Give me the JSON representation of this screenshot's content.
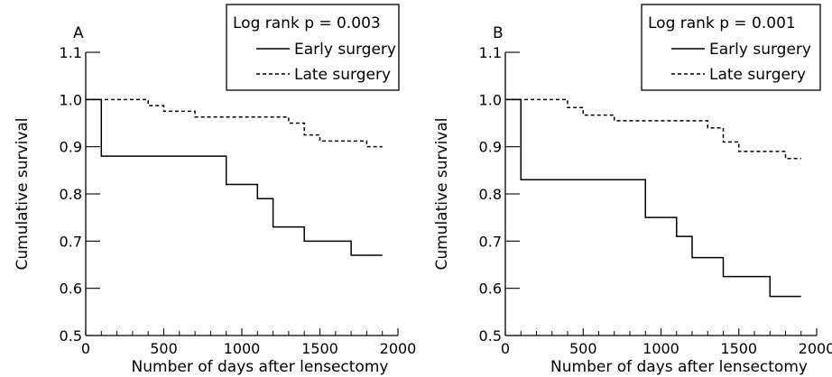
{
  "chart_data": [
    {
      "type": "line",
      "panel_label": "A",
      "xlabel": "Number of days after lensectomy",
      "ylabel": "Cumulative survival",
      "xlim": [
        0,
        2000
      ],
      "ylim": [
        0.5,
        1.1
      ],
      "x_ticks": [
        0,
        500,
        1000,
        1500,
        2000
      ],
      "x_tick_labels": [
        "0",
        "500",
        "1000",
        "1500",
        "2000"
      ],
      "y_ticks": [
        0.5,
        0.6,
        0.7,
        0.8,
        0.9,
        1.0,
        1.1
      ],
      "y_tick_labels": [
        "0.5",
        "0.6",
        "0.7",
        "0.8",
        "0.9",
        "1.0",
        "1.1"
      ],
      "legend_position": "top-right",
      "annotation": "Log rank p = 0.003",
      "series": [
        {
          "name": "Early surgery",
          "line_style": "solid",
          "x": [
            0,
            100,
            900,
            1000,
            1100,
            1200,
            1400,
            1700,
            1900
          ],
          "values": [
            1.0,
            0.88,
            0.82,
            0.82,
            0.79,
            0.73,
            0.7,
            0.67,
            0.67
          ]
        },
        {
          "name": "Late surgery",
          "line_style": "dashed",
          "x": [
            0,
            400,
            500,
            700,
            1300,
            1400,
            1500,
            1700,
            1800,
            1900
          ],
          "values": [
            1.0,
            0.987,
            0.975,
            0.963,
            0.95,
            0.925,
            0.912,
            0.912,
            0.9,
            0.9
          ]
        }
      ]
    },
    {
      "type": "line",
      "panel_label": "B",
      "xlabel": "Number of days after lensectomy",
      "ylabel": "Cumulative survival",
      "xlim": [
        0,
        2000
      ],
      "ylim": [
        0.5,
        1.1
      ],
      "x_ticks": [
        0,
        500,
        1000,
        1500,
        2000
      ],
      "x_tick_labels": [
        "0",
        "500",
        "1000",
        "1500",
        "2000"
      ],
      "y_ticks": [
        0.5,
        0.6,
        0.7,
        0.8,
        0.9,
        1.0,
        1.1
      ],
      "y_tick_labels": [
        "0.5",
        "0.6",
        "0.7",
        "0.8",
        "0.9",
        "1.0",
        "1.1"
      ],
      "legend_position": "top-right",
      "annotation": "Log rank p = 0.001",
      "series": [
        {
          "name": "Early surgery",
          "line_style": "solid",
          "x": [
            0,
            100,
            900,
            1000,
            1100,
            1200,
            1400,
            1700,
            1900
          ],
          "values": [
            1.0,
            0.83,
            0.75,
            0.75,
            0.71,
            0.665,
            0.625,
            0.583,
            0.583
          ]
        },
        {
          "name": "Late surgery",
          "line_style": "dashed",
          "x": [
            0,
            400,
            500,
            700,
            1300,
            1400,
            1500,
            1800,
            1900
          ],
          "values": [
            1.0,
            0.983,
            0.967,
            0.955,
            0.94,
            0.91,
            0.89,
            0.875,
            0.875
          ]
        }
      ]
    }
  ]
}
